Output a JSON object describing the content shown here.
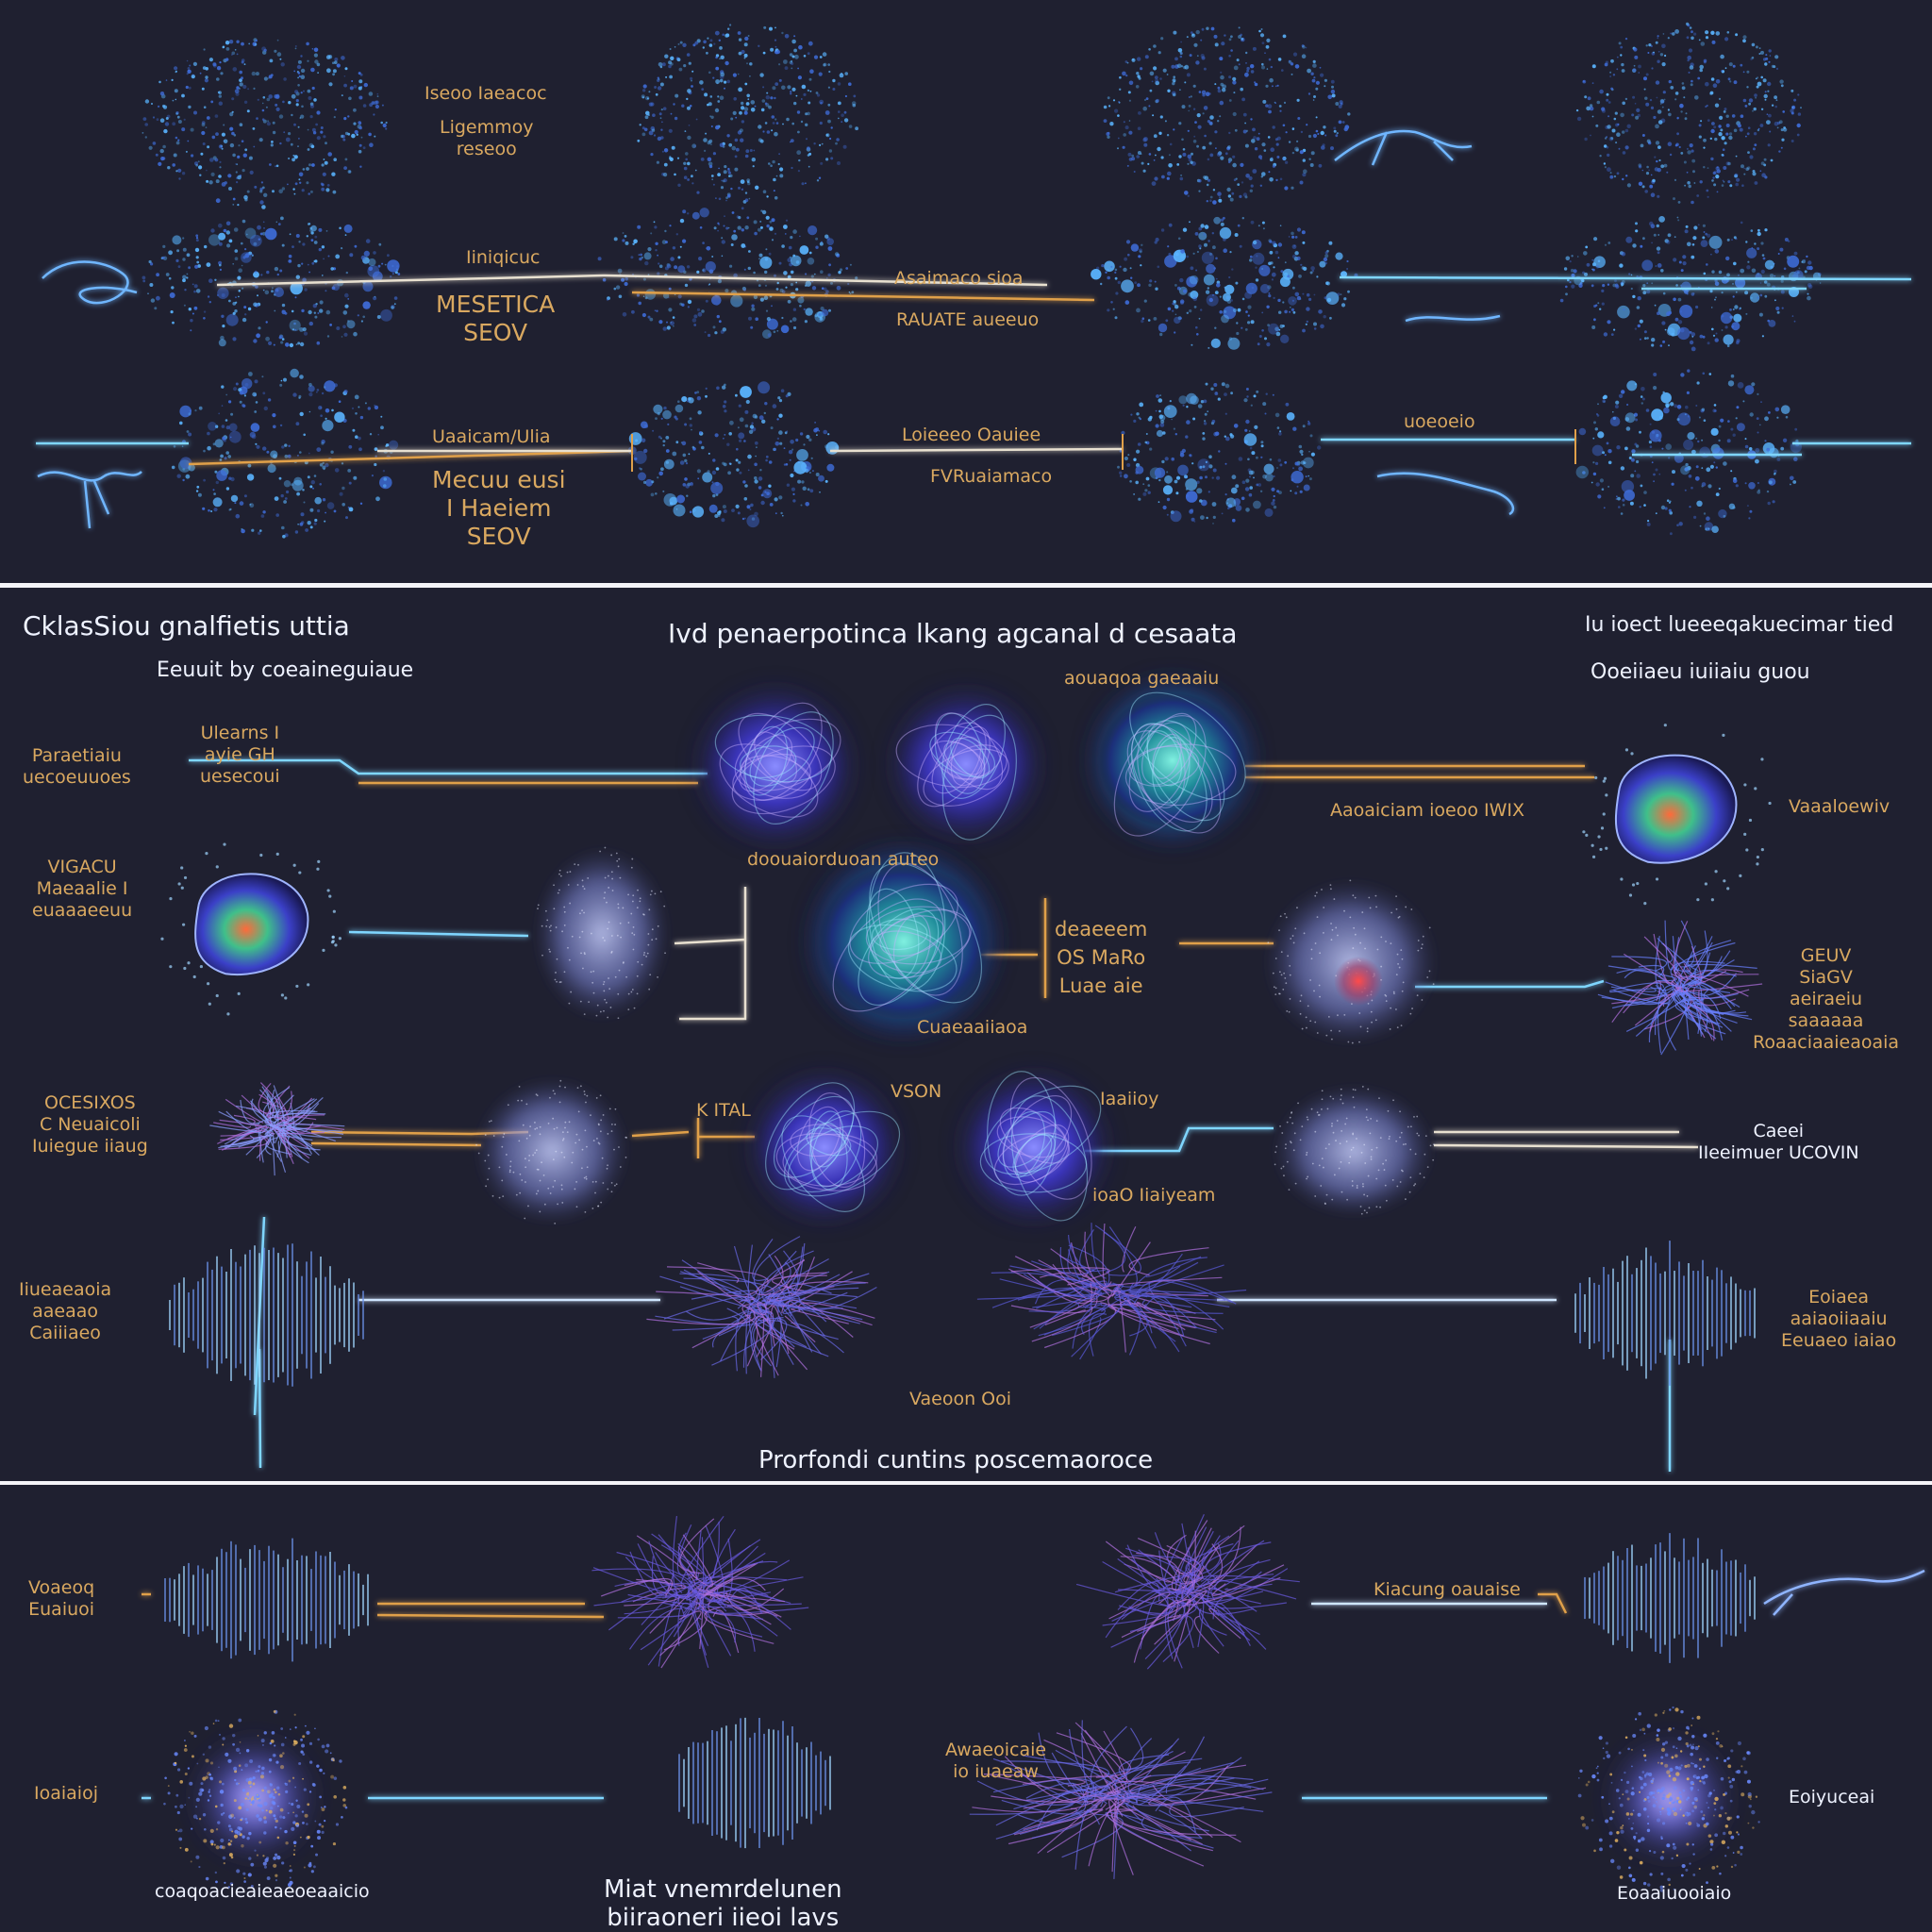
{
  "colors": {
    "background": "#1f2030",
    "divider": "#f4f4f8",
    "label_gold": "#d9a860",
    "label_white": "#eef2ff",
    "line_cyan": "#7fd6ff",
    "line_gold": "#e0a04a",
    "particle_blue": "#5ab4ff",
    "nebula_violet": "#5a4fd8",
    "nebula_teal": "#2ab0a0",
    "nebula_red": "#e04040"
  },
  "icons": [
    "creature-squiggle-icon",
    "particle-cloud-icon",
    "nebula-orb-icon",
    "fiber-bundle-icon",
    "waveform-icon",
    "starburst-icon"
  ],
  "section1": {
    "labels": [
      {
        "id": "s1-l1",
        "text": "Iseoo Iaeacoc"
      },
      {
        "id": "s1-l2",
        "text": "Ligemmoy\nreseoo"
      },
      {
        "id": "s1-l3",
        "text": "Iiniqicuc"
      },
      {
        "id": "s1-l4",
        "text": "MESETICA\nSEOV"
      },
      {
        "id": "s1-l5",
        "text": "Asaimaco sioa"
      },
      {
        "id": "s1-l6",
        "text": "RAUATE aueeuo"
      },
      {
        "id": "s1-l7",
        "text": "Uaaicam/Ulia"
      },
      {
        "id": "s1-l8",
        "text": "Mecuu eusi\nI Haeiem\nSEOV"
      },
      {
        "id": "s1-l9",
        "text": "Loieeeo Oauiee"
      },
      {
        "id": "s1-l10",
        "text": "FVRuaiamaco"
      },
      {
        "id": "s1-l11",
        "text": "uoeoeio"
      }
    ]
  },
  "section2": {
    "title_left": "CklasSiou gnalfietis uttia",
    "subtitle_left": "Eeuuit by coeaineguiaue",
    "title_center": "Ivd penaerpotinca lkang agcanal d cesaata",
    "title_right": "Iu ioect lueeeqakuecimar tied",
    "subtitle_right": "Ooeiiaeu iuiiaiu guou",
    "footer": "Prorfondi cuntins poscemaoroce",
    "labels": [
      {
        "id": "s2-l1",
        "text": "Paraetiaiu\nuecoeuuoes"
      },
      {
        "id": "s2-l2",
        "text": "Ulearns I\nayie GH\nuesecoui"
      },
      {
        "id": "s2-l3",
        "text": "aouaqoa gaeaaiu"
      },
      {
        "id": "s2-l4",
        "text": "Aaoaiciam ioeoo IWIX"
      },
      {
        "id": "s2-l5",
        "text": "Vaaaloewiv"
      },
      {
        "id": "s2-l6",
        "text": "doouaiorduoan auteo"
      },
      {
        "id": "s2-l7",
        "text": "VIGACU\nMaeaalie I\neuaaaeeuu"
      },
      {
        "id": "s2-l8",
        "text": "deaeeem\nOS MaRo\nLuae aie"
      },
      {
        "id": "s2-l9",
        "text": "Cuaeaaiiaoa"
      },
      {
        "id": "s2-l10",
        "text": "GEUV\nSiaGV\naeiraeiu\nsaaaaaa\nRoaaciaaieaoaia"
      },
      {
        "id": "s2-l11",
        "text": "OCESIXOS\nC Neuaicoli\nIuiegue iiaug"
      },
      {
        "id": "s2-l12",
        "text": "K ITAL"
      },
      {
        "id": "s2-l13",
        "text": "VSON"
      },
      {
        "id": "s2-l14",
        "text": "Iaaiioy"
      },
      {
        "id": "s2-l15",
        "text": "ioaO Iiaiyeam"
      },
      {
        "id": "s2-l16",
        "text": "Caeei\nIIeeimuer UCOVIN"
      },
      {
        "id": "s2-l17",
        "text": "Iiueaeaoia\naaeaao\nCaiiiaeo"
      },
      {
        "id": "s2-l18",
        "text": "Eoiaea\naaiaoiiaaiu\nEeuaeo iaiao"
      },
      {
        "id": "s2-l19",
        "text": "Vaeoon Ooi"
      }
    ]
  },
  "section3": {
    "labels": [
      {
        "id": "s3-l1",
        "text": "Voaeoq\nEuaiuoi"
      },
      {
        "id": "s3-l2",
        "text": "Kiacung oauaise"
      },
      {
        "id": "s3-l3",
        "text": "Ioaiaioj"
      },
      {
        "id": "s3-l4",
        "text": "Awaeoicaie\nio iuaeaw"
      },
      {
        "id": "s3-l5",
        "text": "Eoiyuceai"
      },
      {
        "id": "s3-l6",
        "text": "coaqoacieaieaeoeaaicio"
      },
      {
        "id": "s3-l7",
        "text": "Miat vnemrdelunen\nbiiraoneri iieoi lavs"
      },
      {
        "id": "s3-l8",
        "text": "Eoaaiuooiaio"
      }
    ]
  }
}
